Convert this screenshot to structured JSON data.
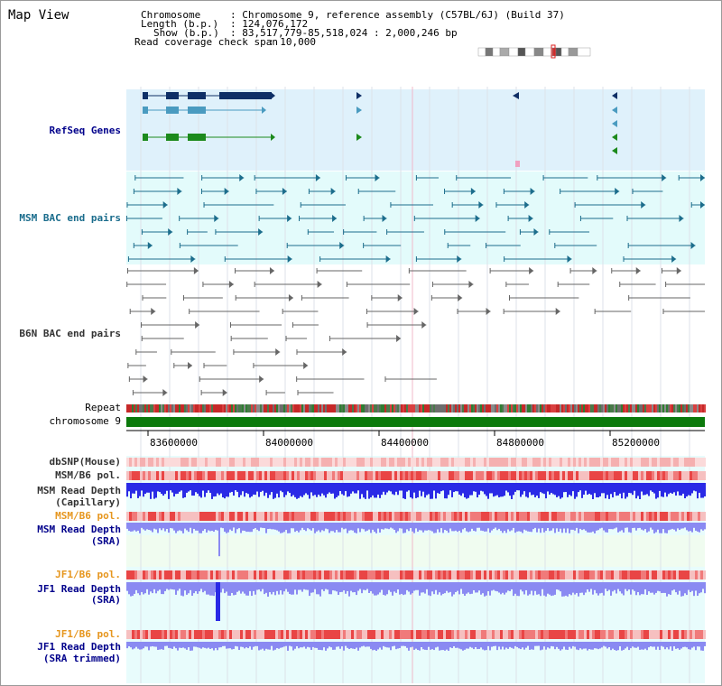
{
  "page": {
    "title": "Map View",
    "info": {
      "chromosome_key": "Chromosome",
      "chromosome_value": ": Chromosome 9, reference assembly (C57BL/6J) (Build 37)",
      "length_key": "Length (b.p.)",
      "length_value": ": 124,076,172",
      "show_key": "Show (b.p.)",
      "show_value": ": 83,517,779-85,518,024 : 2,000,246 bp",
      "coverage_key": "Read coverage check span",
      "coverage_value": ": 10,000"
    }
  },
  "tracks": {
    "refseq": "RefSeq Genes",
    "msm_bac": "MSM BAC end pairs",
    "b6n_bac": "B6N BAC end pairs",
    "repeat": "Repeat",
    "chromosome": "chromosome 9",
    "dbsnp": "dbSNP(Mouse)",
    "msm_pol": "MSM/B6 pol.",
    "msm_depth_cap_1": "MSM Read Depth",
    "msm_depth_cap_2": "(Capillary)",
    "msm_pol_2": "MSM/B6 pol.",
    "msm_depth_sra_1": "MSM Read Depth",
    "msm_depth_sra_2": "(SRA)",
    "jf1_pol": "JF1/B6 pol.",
    "jf1_depth_sra_1": "JF1 Read Depth",
    "jf1_depth_sra_2": "(SRA)",
    "jf1_pol_2": "JF1/B6 pol.",
    "jf1_depth_trim_1": "JF1 Read Depth",
    "jf1_depth_trim_2": "(SRA trimmed)"
  },
  "axis": {
    "ticks": [
      "83600000",
      "84000000",
      "84400000",
      "84800000",
      "85200000"
    ]
  },
  "colors": {
    "refseq_bg": "#dff1fb",
    "msm_bac_bg": "#e3fbfb",
    "panel_bg": "#e8fcfc",
    "chromosome": "#0c7a0c",
    "gene_navy": "#0f2f66",
    "gene_teal": "#4a9bc0",
    "gene_green": "#1c8a1c",
    "msm_line": "#1c6d8c",
    "b6n_line": "#666666",
    "depth_blue": "#2a2ae6",
    "depth_light": "#8a8af2",
    "label_blue": "#00008b",
    "label_teal": "#1a6c8c",
    "label_orange": "#e6961e"
  }
}
